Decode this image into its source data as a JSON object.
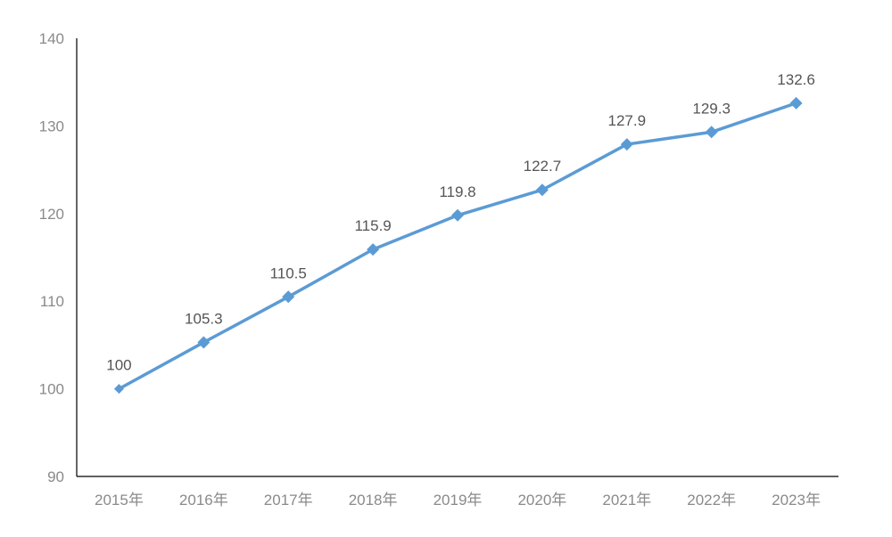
{
  "chart_data": {
    "type": "line",
    "title": "",
    "xlabel": "",
    "ylabel": "",
    "categories": [
      "2015年",
      "2016年",
      "2017年",
      "2018年",
      "2019年",
      "2020年",
      "2021年",
      "2022年",
      "2023年"
    ],
    "series": [
      {
        "values": [
          100,
          105.3,
          110.5,
          115.9,
          119.8,
          122.7,
          127.9,
          129.3,
          132.6
        ],
        "data_labels": [
          "100",
          "105.3",
          "110.5",
          "115.9",
          "119.8",
          "122.7",
          "127.9",
          "129.3",
          "132.6"
        ],
        "color": "#5b9bd5",
        "marker": "diamond"
      }
    ],
    "ylim": [
      90,
      140
    ],
    "yticks": [
      90,
      100,
      110,
      120,
      130,
      140
    ],
    "ytick_labels": [
      "90",
      "100",
      "110",
      "120",
      "130",
      "140"
    ],
    "grid": false,
    "legend": "none",
    "axis_color": "#000000",
    "tick_label_color": "#8a8a8a",
    "data_label_color": "#555555"
  }
}
